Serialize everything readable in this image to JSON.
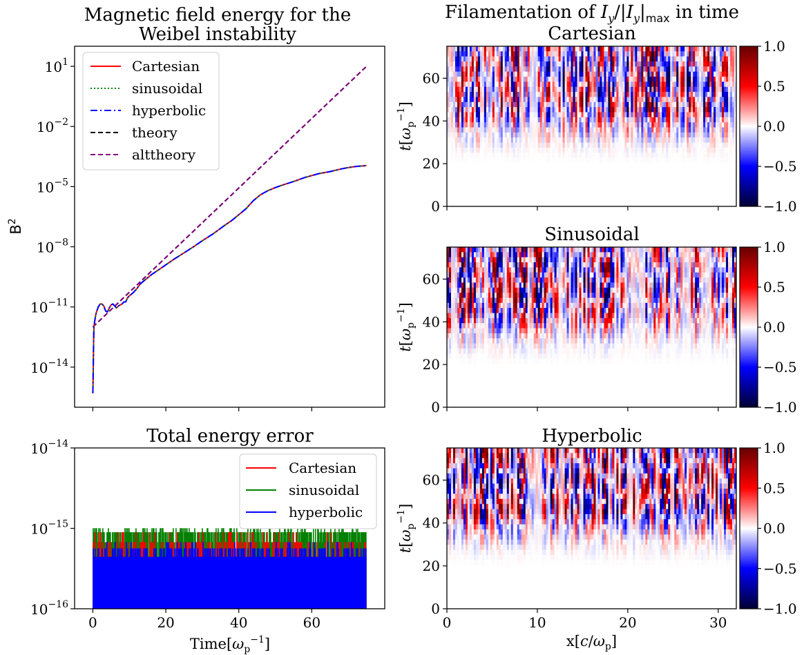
{
  "figure_title": "Filamentation of I_y/|I_y|_max in time",
  "colors": {
    "cartesian": "#ff0000",
    "sinusoidal": "#008000",
    "hyperbolic": "#0000ff",
    "theory": "#000000",
    "alttheory": "#800080",
    "colormap": [
      "#000033",
      "#0000ff",
      "#ffffff",
      "#ff0000",
      "#660000"
    ]
  },
  "chart_data": [
    {
      "id": "magnetic",
      "type": "line",
      "title": "Magnetic field energy for the Weibel instability",
      "title_lines": [
        "Magnetic field energy for the",
        "Weibel instability"
      ],
      "xlabel": "",
      "ylabel": "B^2",
      "y_scale": "log",
      "xlim": [
        -5,
        80
      ],
      "ylim": [
        1e-16,
        100.0
      ],
      "y_ticks": [
        {
          "exp": 1,
          "label": "10^1"
        },
        {
          "exp": -2,
          "label": "10^-2"
        },
        {
          "exp": -5,
          "label": "10^-5"
        },
        {
          "exp": -8,
          "label": "10^-8"
        },
        {
          "exp": -11,
          "label": "10^-11"
        },
        {
          "exp": -14,
          "label": "10^-14"
        }
      ],
      "legend": "upper-left",
      "series": [
        {
          "name": "Cartesian",
          "style": "solid",
          "colorKey": "cartesian",
          "x": [
            0,
            0.05,
            0.1,
            0.2,
            0.3,
            0.5,
            0.8,
            1,
            1.5,
            2,
            2.5,
            3,
            3.5,
            4,
            4.5,
            5,
            5.5,
            6,
            6.5,
            7,
            7.5,
            8,
            8.5,
            9,
            9.5,
            10,
            11,
            12,
            13,
            14,
            15,
            16,
            18,
            20,
            22,
            25,
            28,
            30,
            33,
            36,
            38,
            40,
            42,
            44,
            46,
            48,
            50,
            52,
            55,
            58,
            60,
            62,
            65,
            68,
            70,
            72,
            75
          ],
          "y": [
            -15.3,
            -14.8,
            -14.3,
            -12.8,
            -12.0,
            -11.7,
            -11.4,
            -11.25,
            -11.0,
            -10.85,
            -10.85,
            -10.95,
            -11.2,
            -11.25,
            -11.05,
            -10.9,
            -10.85,
            -10.95,
            -11.05,
            -10.95,
            -10.9,
            -10.85,
            -10.75,
            -10.75,
            -10.55,
            -10.45,
            -10.3,
            -10.1,
            -9.85,
            -9.7,
            -9.55,
            -9.4,
            -9.15,
            -8.9,
            -8.65,
            -8.3,
            -7.95,
            -7.7,
            -7.35,
            -6.95,
            -6.7,
            -6.4,
            -6.1,
            -5.7,
            -5.4,
            -5.2,
            -5.05,
            -4.92,
            -4.75,
            -4.55,
            -4.45,
            -4.35,
            -4.25,
            -4.12,
            -4.05,
            -4.0,
            -3.95
          ]
        },
        {
          "name": "sinusoidal",
          "style": "dotted",
          "colorKey": "sinusoidal",
          "x": [
            0,
            0.05,
            0.1,
            0.2,
            0.3,
            0.5,
            0.8,
            1,
            1.5,
            2,
            2.5,
            3,
            3.5,
            4,
            4.5,
            5,
            5.5,
            6,
            6.5,
            7,
            7.5,
            8,
            8.5,
            9,
            9.5,
            10,
            11,
            12,
            13,
            14,
            15,
            16,
            18,
            20,
            22,
            25,
            28,
            30,
            33,
            36,
            38,
            40,
            42,
            44,
            46,
            48,
            50,
            52,
            55,
            58,
            60,
            62,
            65,
            68,
            70,
            72,
            75
          ],
          "y": [
            -15.3,
            -14.8,
            -14.3,
            -12.8,
            -12.0,
            -11.7,
            -11.4,
            -11.25,
            -11.0,
            -10.85,
            -10.85,
            -10.95,
            -11.2,
            -11.25,
            -11.05,
            -10.9,
            -10.85,
            -10.95,
            -11.05,
            -10.95,
            -10.9,
            -10.85,
            -10.75,
            -10.75,
            -10.55,
            -10.45,
            -10.3,
            -10.1,
            -9.85,
            -9.7,
            -9.55,
            -9.4,
            -9.15,
            -8.9,
            -8.65,
            -8.3,
            -7.95,
            -7.7,
            -7.35,
            -6.95,
            -6.7,
            -6.4,
            -6.1,
            -5.7,
            -5.4,
            -5.2,
            -5.05,
            -4.92,
            -4.75,
            -4.55,
            -4.45,
            -4.35,
            -4.25,
            -4.12,
            -4.05,
            -4.0,
            -3.95
          ]
        },
        {
          "name": "hyperbolic",
          "style": "dashdot",
          "colorKey": "hyperbolic",
          "x": [
            0,
            0.05,
            0.1,
            0.2,
            0.3,
            0.5,
            0.8,
            1,
            1.5,
            2,
            2.5,
            3,
            3.5,
            4,
            4.5,
            5,
            5.5,
            6,
            6.5,
            7,
            7.5,
            8,
            8.5,
            9,
            9.5,
            10,
            11,
            12,
            13,
            14,
            15,
            16,
            18,
            20,
            22,
            25,
            28,
            30,
            33,
            36,
            38,
            40,
            42,
            44,
            46,
            48,
            50,
            52,
            55,
            58,
            60,
            62,
            65,
            68,
            70,
            72,
            75
          ],
          "y": [
            -15.3,
            -14.8,
            -14.3,
            -12.8,
            -12.0,
            -11.7,
            -11.4,
            -11.25,
            -11.0,
            -10.85,
            -10.85,
            -10.95,
            -11.2,
            -11.25,
            -11.05,
            -10.9,
            -10.85,
            -10.95,
            -11.05,
            -10.95,
            -10.9,
            -10.85,
            -10.75,
            -10.75,
            -10.55,
            -10.45,
            -10.3,
            -10.1,
            -9.85,
            -9.7,
            -9.55,
            -9.4,
            -9.15,
            -8.9,
            -8.65,
            -8.3,
            -7.95,
            -7.7,
            -7.35,
            -6.95,
            -6.7,
            -6.4,
            -6.1,
            -5.7,
            -5.4,
            -5.2,
            -5.05,
            -4.92,
            -4.75,
            -4.55,
            -4.45,
            -4.35,
            -4.25,
            -4.12,
            -4.05,
            -4.0,
            -3.95
          ]
        },
        {
          "name": "theory",
          "style": "dashed",
          "colorKey": "theory",
          "x": [
            0,
            75
          ],
          "y": [
            -12.0,
            1.0
          ]
        },
        {
          "name": "alttheory",
          "style": "dashed",
          "colorKey": "alttheory",
          "x": [
            0,
            75
          ],
          "y": [
            -12.0,
            1.0
          ]
        }
      ]
    },
    {
      "id": "energy_error",
      "type": "line",
      "title": "Total energy error",
      "xlabel": "Time[ω_p^-1]",
      "ylabel": "",
      "y_scale": "log",
      "xlim": [
        -5,
        80
      ],
      "ylim": [
        1e-16,
        1e-14
      ],
      "x_ticks": [
        0,
        20,
        40,
        60
      ],
      "y_ticks": [
        {
          "exp": -14,
          "label": "10^-14"
        },
        {
          "exp": -15,
          "label": "10^-15"
        },
        {
          "exp": -16,
          "label": "10^-16"
        }
      ],
      "legend": "upper-right",
      "series": [
        {
          "name": "Cartesian",
          "colorKey": "cartesian",
          "levels": [
            4.4e-16,
            6.7e-16,
            8.9e-16
          ]
        },
        {
          "name": "sinusoidal",
          "colorKey": "sinusoidal",
          "levels": [
            4.4e-16,
            6.7e-16,
            8.9e-16,
            1e-15
          ]
        },
        {
          "name": "hyperbolic",
          "colorKey": "hyperbolic",
          "levels": [
            4.4e-16,
            5.6e-16,
            6.7e-16
          ]
        }
      ],
      "x_range": [
        0,
        75
      ]
    },
    {
      "id": "cartesian_heatmap",
      "type": "heatmap",
      "title": "Cartesian",
      "xlabel": "",
      "ylabel": "t[ω_p^-1]",
      "xlim": [
        0,
        32
      ],
      "ylim": [
        0,
        75
      ],
      "y_ticks": [
        0,
        20,
        40,
        60
      ],
      "colorbar_range": [
        -1.0,
        1.0
      ],
      "colorbar_ticks": [
        "1.0",
        "0.5",
        "0.0",
        "−0.5",
        "−1.0"
      ],
      "filament_onset_t": 18,
      "saturation_t": 45
    },
    {
      "id": "sinusoidal_heatmap",
      "type": "heatmap",
      "title": "Sinusoidal",
      "xlabel": "",
      "ylabel": "t[ω_p^-1]",
      "xlim": [
        0,
        32
      ],
      "ylim": [
        0,
        75
      ],
      "y_ticks": [
        0,
        20,
        40,
        60
      ],
      "colorbar_range": [
        -1.0,
        1.0
      ],
      "colorbar_ticks": [
        "1.0",
        "0.5",
        "0.0",
        "−0.5",
        "−1.0"
      ],
      "filament_onset_t": 18,
      "saturation_t": 45
    },
    {
      "id": "hyperbolic_heatmap",
      "type": "heatmap",
      "title": "Hyperbolic",
      "xlabel": "x[c/ω_p]",
      "ylabel": "t[ω_p^-1]",
      "xlim": [
        0,
        32
      ],
      "ylim": [
        0,
        75
      ],
      "x_ticks": [
        0,
        10,
        20,
        30
      ],
      "y_ticks": [
        0,
        20,
        40,
        60
      ],
      "colorbar_range": [
        -1.0,
        1.0
      ],
      "colorbar_ticks": [
        "1.0",
        "0.5",
        "0.0",
        "−0.5",
        "−1.0"
      ],
      "filament_onset_t": 18,
      "saturation_t": 45
    }
  ]
}
